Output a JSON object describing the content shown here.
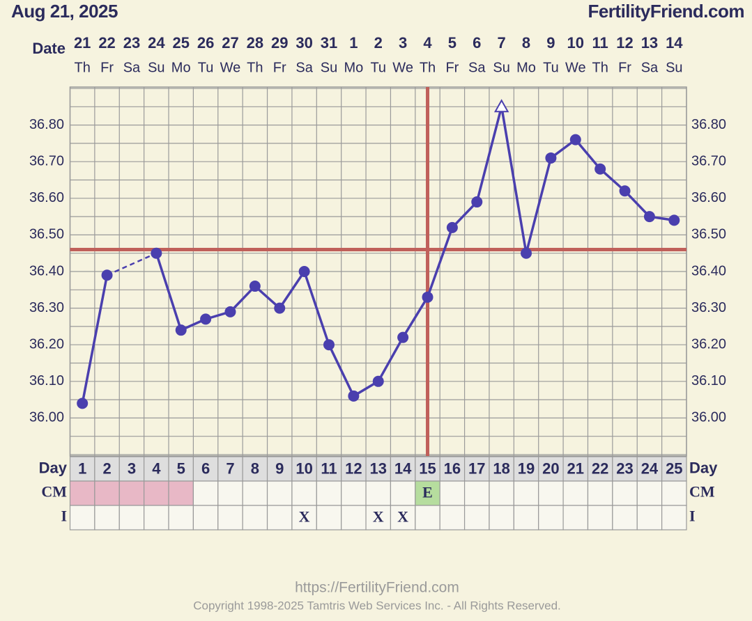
{
  "chart_data": {
    "type": "line",
    "title": "Aug 21, 2025",
    "site": "FertilityFriend.com",
    "date_label": "Date",
    "x": [
      1,
      2,
      3,
      4,
      5,
      6,
      7,
      8,
      9,
      10,
      11,
      12,
      13,
      14,
      15,
      16,
      17,
      18,
      19,
      20,
      21,
      22,
      23,
      24,
      25
    ],
    "dates": [
      "21",
      "22",
      "23",
      "24",
      "25",
      "26",
      "27",
      "28",
      "29",
      "30",
      "31",
      "1",
      "2",
      "3",
      "4",
      "5",
      "6",
      "7",
      "8",
      "9",
      "10",
      "11",
      "12",
      "13",
      "14"
    ],
    "weekdays": [
      "Th",
      "Fr",
      "Sa",
      "Su",
      "Mo",
      "Tu",
      "We",
      "Th",
      "Fr",
      "Sa",
      "Su",
      "Mo",
      "Tu",
      "We",
      "Th",
      "Fr",
      "Sa",
      "Su",
      "Mo",
      "Tu",
      "We",
      "Th",
      "Fr",
      "Sa",
      "Su"
    ],
    "values": [
      36.04,
      36.39,
      null,
      36.45,
      36.24,
      36.27,
      36.29,
      36.36,
      36.3,
      36.4,
      36.2,
      36.06,
      36.1,
      36.22,
      36.33,
      36.52,
      36.59,
      36.85,
      36.45,
      36.71,
      36.76,
      36.68,
      36.62,
      36.55,
      36.54
    ],
    "markers": [
      "circle",
      "circle",
      null,
      "circle",
      "circle",
      "circle",
      "circle",
      "circle",
      "circle",
      "circle",
      "circle",
      "circle",
      "circle",
      "circle",
      "circle",
      "circle",
      "circle",
      "open-triangle",
      "circle",
      "circle",
      "circle",
      "circle",
      "circle",
      "circle",
      "circle"
    ],
    "color": "#4a3fae",
    "ylim": [
      35.9,
      36.9
    ],
    "yticks": [
      {
        "value": 36.0,
        "label": "36.00"
      },
      {
        "value": 36.1,
        "label": "36.10"
      },
      {
        "value": 36.2,
        "label": "36.20"
      },
      {
        "value": 36.3,
        "label": "36.30"
      },
      {
        "value": 36.4,
        "label": "36.40"
      },
      {
        "value": 36.5,
        "label": "36.50"
      },
      {
        "value": 36.6,
        "label": "36.60"
      },
      {
        "value": 36.7,
        "label": "36.70"
      },
      {
        "value": 36.8,
        "label": "36.80"
      }
    ],
    "minor_grid_step": 0.05,
    "grid": true,
    "coverline": 36.46,
    "ovulation_day": 15,
    "marker_line_color": "#c0605a",
    "row_labels": {
      "day": "Day",
      "cm": "CM",
      "i": "I"
    },
    "cm": [
      null,
      null,
      null,
      null,
      null,
      null,
      null,
      null,
      null,
      null,
      null,
      null,
      null,
      null,
      "E",
      null,
      null,
      null,
      null,
      null,
      null,
      null,
      null,
      null,
      null
    ],
    "cm_colors": [
      "#e8b8c6",
      "#e8b8c6",
      "#e8b8c6",
      "#e8b8c6",
      "#e8b8c6",
      null,
      null,
      null,
      null,
      null,
      null,
      null,
      null,
      null,
      "#b6dd9e",
      null,
      null,
      null,
      null,
      null,
      null,
      null,
      null,
      null,
      null
    ],
    "intercourse": [
      null,
      null,
      null,
      null,
      null,
      null,
      null,
      null,
      null,
      "X",
      null,
      null,
      "X",
      "X",
      null,
      null,
      null,
      null,
      null,
      null,
      null,
      null,
      null,
      null,
      null
    ]
  },
  "footer": {
    "url": "https://FertilityFriend.com",
    "copyright": "Copyright 1998-2025 Tamtris Web Services Inc. - All Rights Reserved."
  }
}
